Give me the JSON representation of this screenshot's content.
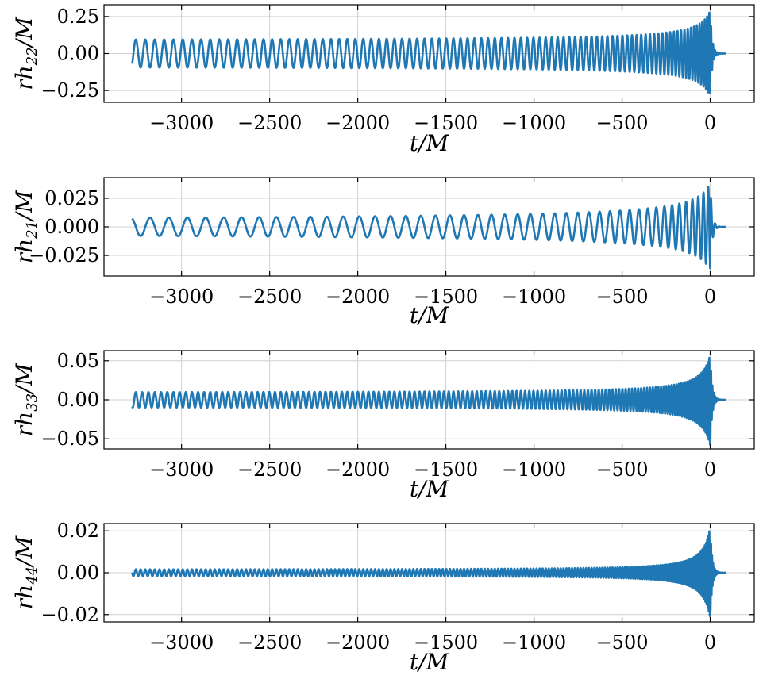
{
  "chart_data": [
    {
      "type": "line",
      "ylabel": {
        "main": "rh",
        "sub": "22",
        "tail": "/M"
      },
      "xlabel": "t/M",
      "xlim": [
        -3440,
        250
      ],
      "ylim": [
        -0.33,
        0.33
      ],
      "xticks": [
        -3000,
        -2500,
        -2000,
        -1500,
        -1000,
        -500,
        0
      ],
      "xtick_labels": [
        "−3000",
        "−2500",
        "−2000",
        "−1500",
        "−1000",
        "−500",
        "0"
      ],
      "yticks": [
        0.25,
        0.0,
        -0.25
      ],
      "ytick_labels": [
        "0.25",
        "0.00",
        "−0.25"
      ],
      "grid": true,
      "series": [
        {
          "t_start": -3280,
          "t_merger": 0,
          "t_end": 90,
          "peak_amplitude": 0.29,
          "early_amplitude": 0.085,
          "mode_m": 2,
          "color": "#1f77b4"
        }
      ]
    },
    {
      "type": "line",
      "ylabel": {
        "main": "rh",
        "sub": "21",
        "tail": "/M"
      },
      "xlabel": "t/M",
      "xlim": [
        -3440,
        250
      ],
      "ylim": [
        -0.043,
        0.043
      ],
      "xticks": [
        -3000,
        -2500,
        -2000,
        -1500,
        -1000,
        -500,
        0
      ],
      "xtick_labels": [
        "−3000",
        "−2500",
        "−2000",
        "−1500",
        "−1000",
        "−500",
        "0"
      ],
      "yticks": [
        0.025,
        0.0,
        -0.025
      ],
      "ytick_labels": [
        "0.025",
        "0.000",
        "−0.025"
      ],
      "grid": true,
      "series": [
        {
          "t_start": -3280,
          "t_merger": 0,
          "t_end": 90,
          "peak_amplitude": 0.038,
          "early_amplitude": 0.0035,
          "mode_m": 1,
          "color": "#1f77b4"
        }
      ]
    },
    {
      "type": "line",
      "ylabel": {
        "main": "rh",
        "sub": "33",
        "tail": "/M"
      },
      "xlabel": "t/M",
      "xlim": [
        -3440,
        250
      ],
      "ylim": [
        -0.063,
        0.063
      ],
      "xticks": [
        -3000,
        -2500,
        -2000,
        -1500,
        -1000,
        -500,
        0
      ],
      "xtick_labels": [
        "−3000",
        "−2500",
        "−2000",
        "−1500",
        "−1000",
        "−500",
        "0"
      ],
      "yticks": [
        0.05,
        0.0,
        -0.05
      ],
      "ytick_labels": [
        "0.05",
        "0.00",
        "−0.05"
      ],
      "grid": true,
      "series": [
        {
          "t_start": -3280,
          "t_merger": 0,
          "t_end": 90,
          "peak_amplitude": 0.058,
          "early_amplitude": 0.009,
          "mode_m": 3,
          "color": "#1f77b4"
        }
      ]
    },
    {
      "type": "line",
      "ylabel": {
        "main": "rh",
        "sub": "44",
        "tail": "/M"
      },
      "xlabel": "t/M",
      "xlim": [
        -3440,
        250
      ],
      "ylim": [
        -0.0235,
        0.0235
      ],
      "xticks": [
        -3000,
        -2500,
        -2000,
        -1500,
        -1000,
        -500,
        0
      ],
      "xtick_labels": [
        "−3000",
        "−2500",
        "−2000",
        "−1500",
        "−1000",
        "−500",
        "0"
      ],
      "yticks": [
        0.02,
        0.0,
        -0.02
      ],
      "ytick_labels": [
        "0.02",
        "0.00",
        "−0.02"
      ],
      "grid": true,
      "series": [
        {
          "t_start": -3280,
          "t_merger": 0,
          "t_end": 90,
          "peak_amplitude": 0.022,
          "early_amplitude": 0.0015,
          "mode_m": 4,
          "color": "#1f77b4"
        }
      ]
    }
  ]
}
